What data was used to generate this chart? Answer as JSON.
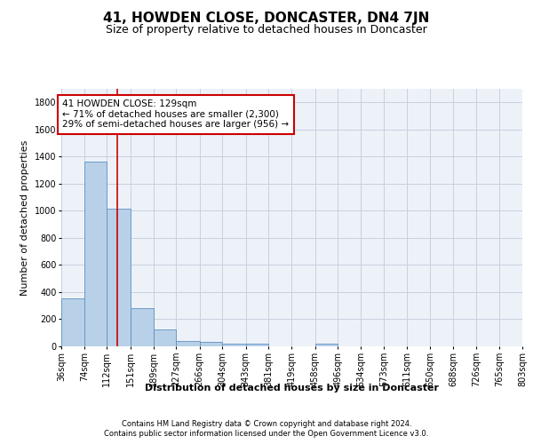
{
  "title": "41, HOWDEN CLOSE, DONCASTER, DN4 7JN",
  "subtitle": "Size of property relative to detached houses in Doncaster",
  "xlabel": "Distribution of detached houses by size in Doncaster",
  "ylabel": "Number of detached properties",
  "footer_line1": "Contains HM Land Registry data © Crown copyright and database right 2024.",
  "footer_line2": "Contains public sector information licensed under the Open Government Licence v3.0.",
  "bar_edges": [
    36,
    74,
    112,
    151,
    189,
    227,
    266,
    304,
    343,
    381,
    419,
    458,
    496,
    534,
    573,
    611,
    650,
    688,
    726,
    765,
    803
  ],
  "bar_heights": [
    355,
    1365,
    1015,
    283,
    125,
    40,
    30,
    22,
    18,
    0,
    0,
    18,
    0,
    0,
    0,
    0,
    0,
    0,
    0,
    0
  ],
  "bar_color": "#b8d0e8",
  "bar_edge_color": "#6090c0",
  "property_size": 129,
  "red_line_color": "#cc0000",
  "annotation_line1": "41 HOWDEN CLOSE: 129sqm",
  "annotation_line2": "← 71% of detached houses are smaller (2,300)",
  "annotation_line3": "29% of semi-detached houses are larger (956) →",
  "annotation_box_color": "#ffffff",
  "annotation_box_edge": "#cc0000",
  "ylim": [
    0,
    1900
  ],
  "yticks": [
    0,
    200,
    400,
    600,
    800,
    1000,
    1200,
    1400,
    1600,
    1800
  ],
  "bg_color": "#edf2f9",
  "grid_color": "#c8d0de",
  "title_fontsize": 11,
  "subtitle_fontsize": 9,
  "ylabel_fontsize": 8,
  "xlabel_fontsize": 8,
  "tick_fontsize": 7,
  "annotation_fontsize": 7.5,
  "footer_fontsize": 6
}
